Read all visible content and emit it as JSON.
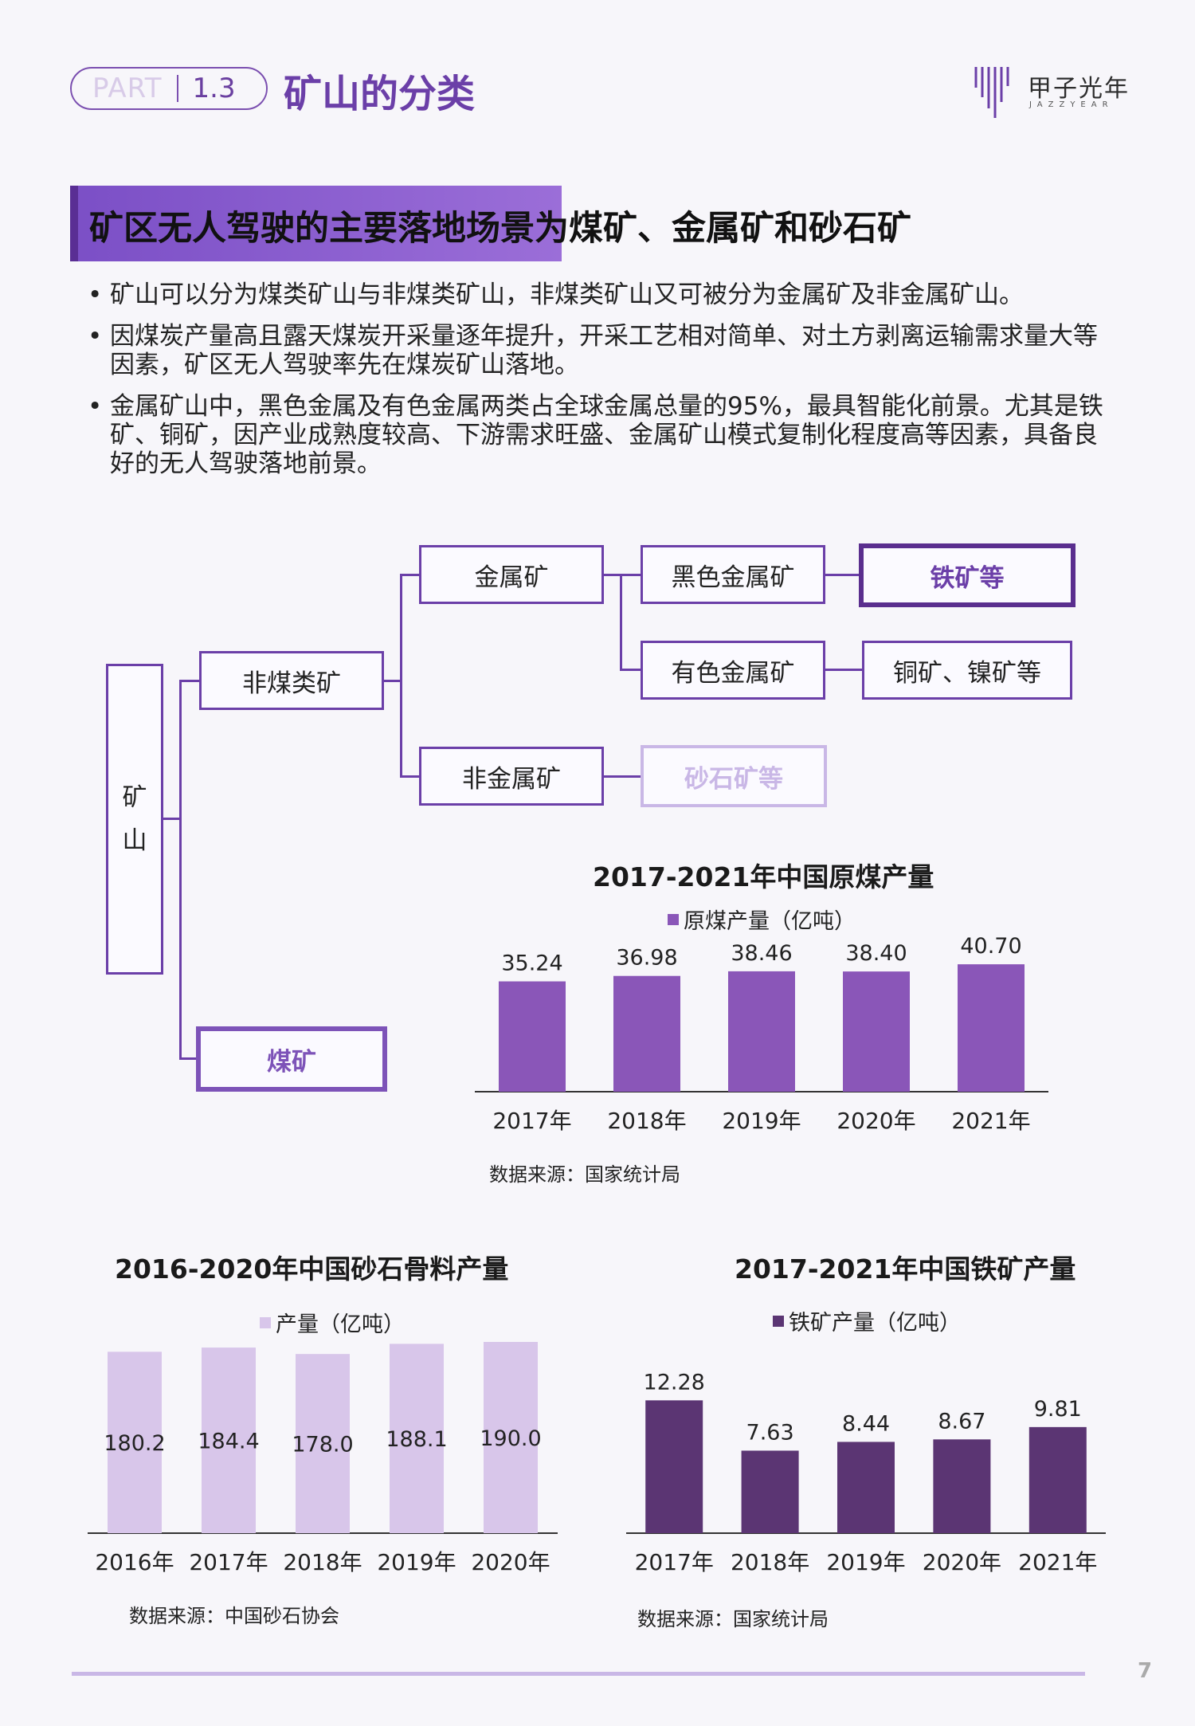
{
  "header": {
    "part_label": "PART",
    "part_number": "1.3",
    "page_title": "矿山的分类",
    "logo_cn": "甲子光年",
    "logo_en": "JAZZYEAR"
  },
  "section": {
    "heading": "矿区无人驾驶的主要落地场景为煤矿、金属矿和砂石矿",
    "bullets": [
      "矿山可以分为煤类矿山与非煤类矿山，非煤类矿山又可被分为金属矿及非金属矿山。",
      "因煤炭产量高且露天煤炭开采量逐年提升，开采工艺相对简单、对土方剥离运输需求量大等因素，矿区无人驾驶率先在煤炭矿山落地。",
      "金属矿山中，黑色金属及有色金属两类占全球金属总量的95%，最具智能化前景。尤其是铁矿、铜矿，因产业成熟度较高、下游需求旺盛、金属矿山模式复制化程度高等因素，具备良好的无人驾驶落地前景。"
    ]
  },
  "tree": {
    "root_chars": [
      "矿",
      "山"
    ],
    "non_coal": "非煤类矿",
    "coal": "煤矿",
    "metal": "金属矿",
    "non_metal": "非金属矿",
    "ferrous": "黑色金属矿",
    "nonferrous": "有色金属矿",
    "iron": "铁矿等",
    "copper_nickel": "铜矿、镍矿等",
    "sand_stone": "砂石矿等"
  },
  "chart_data": [
    {
      "type": "bar",
      "title": "2017-2021年中国原煤产量",
      "categories": [
        "2017年",
        "2018年",
        "2019年",
        "2020年",
        "2021年"
      ],
      "series": [
        {
          "name": "原煤产量（亿吨）",
          "values": [
            35.24,
            36.98,
            38.46,
            38.4,
            40.7
          ]
        }
      ],
      "value_labels": [
        "35.24",
        "36.98",
        "38.46",
        "38.40",
        "40.70"
      ],
      "ylim": [
        0,
        42
      ],
      "legend": "top",
      "grid": false,
      "color": "#8a56b8",
      "source": "数据来源：国家统计局"
    },
    {
      "type": "bar",
      "title": "2016-2020年中国砂石骨料产量",
      "categories": [
        "2016年",
        "2017年",
        "2018年",
        "2019年",
        "2020年"
      ],
      "series": [
        {
          "name": "产量（亿吨）",
          "values": [
            180.2,
            184.4,
            178.0,
            188.1,
            190.0
          ]
        }
      ],
      "value_labels": [
        "180.2",
        "184.4",
        "178.0",
        "188.1",
        "190.0"
      ],
      "ylim": [
        0,
        190
      ],
      "legend": "top",
      "grid": false,
      "color": "#d8c6ea",
      "source": "数据来源：中国砂石协会"
    },
    {
      "type": "bar",
      "title": "2017-2021年中国铁矿产量",
      "categories": [
        "2017年",
        "2018年",
        "2019年",
        "2020年",
        "2021年"
      ],
      "series": [
        {
          "name": "铁矿产量（亿吨）",
          "values": [
            12.28,
            7.63,
            8.44,
            8.67,
            9.81
          ]
        }
      ],
      "value_labels": [
        "12.28",
        "7.63",
        "8.44",
        "8.67",
        "9.81"
      ],
      "ylim": [
        0,
        14
      ],
      "legend": "top",
      "grid": false,
      "color": "#5b3573",
      "source": "数据来源：国家统计局"
    }
  ],
  "footer": {
    "page_number": "7"
  }
}
